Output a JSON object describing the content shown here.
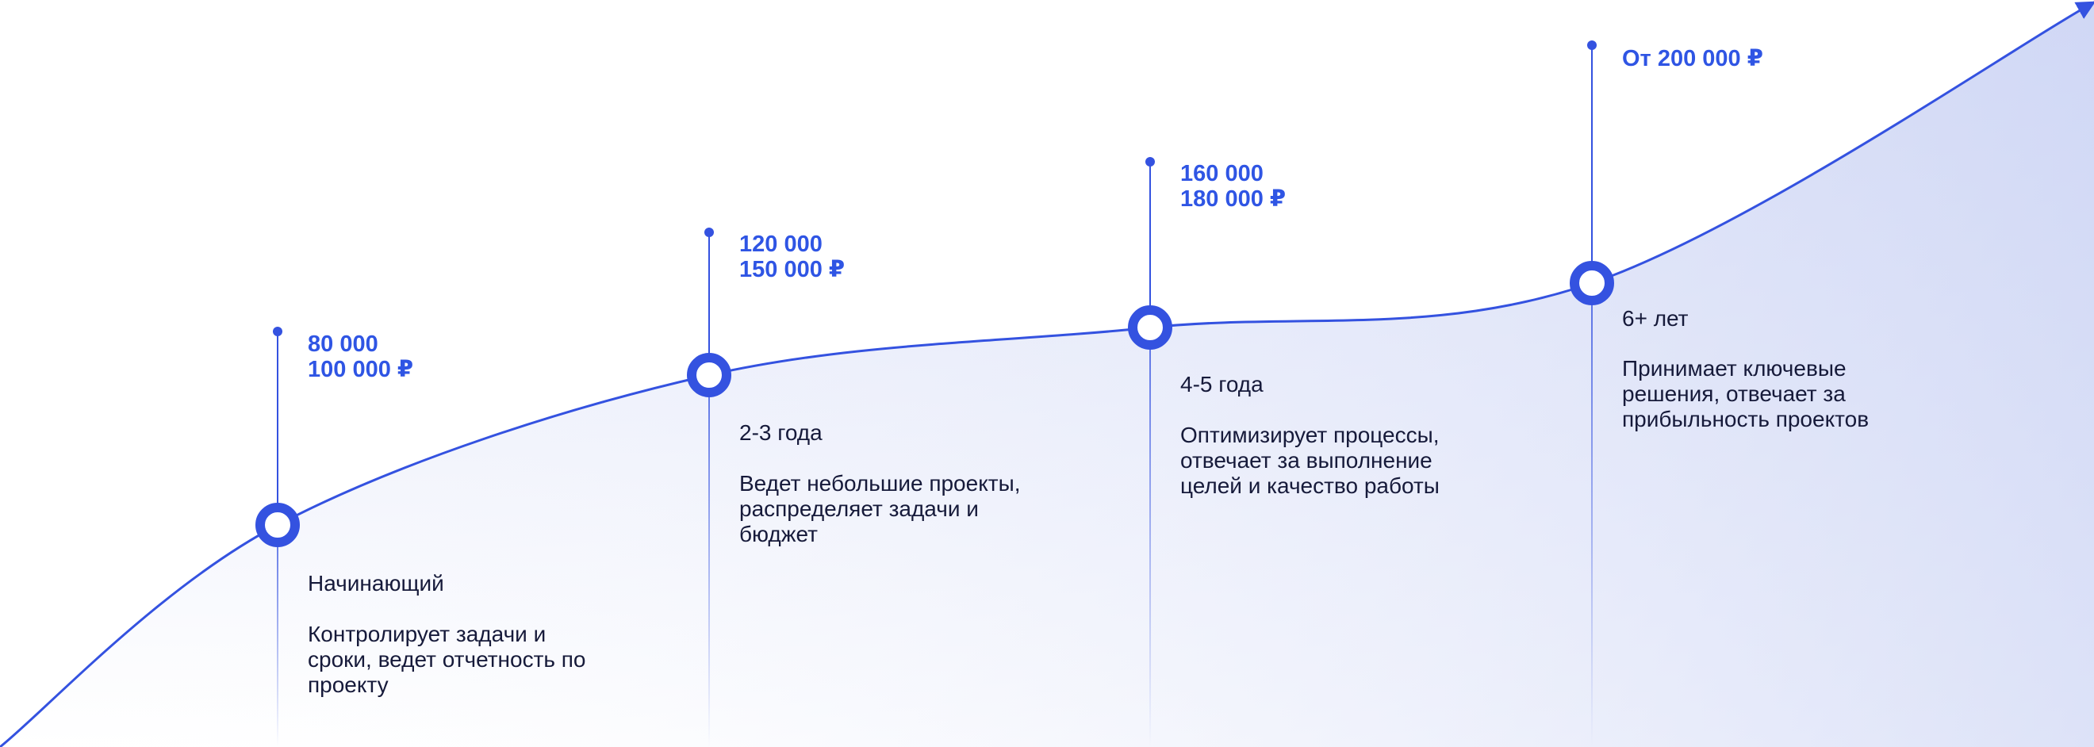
{
  "colors": {
    "accent": "#3452e0",
    "salary_text": "#2f55e4",
    "body_text": "#161a3a",
    "fill_light": "#dfe4f8",
    "fill_strong": "#cdd5f4"
  },
  "milestones": [
    {
      "salary_line1": "80 000",
      "salary_line2": "100 000 ₽",
      "level": "Начинающий",
      "description": "Контролирует задачи и сроки, ведет отчетность по проекту"
    },
    {
      "salary_line1": "120 000",
      "salary_line2": "150 000 ₽",
      "level": "2-3 года",
      "description": "Ведет небольшие проекты, распределяет задачи и бюджет"
    },
    {
      "salary_line1": "160 000",
      "salary_line2": "180 000 ₽",
      "level": "4-5 года",
      "description": "Оптимизирует процессы, отвечает за выполнение целей и качество работы"
    },
    {
      "salary_line1": "От 200 000 ₽",
      "salary_line2": "",
      "level": "6+ лет",
      "description": "Принимает ключевые решения, отвечает за прибыльность проектов"
    }
  ]
}
